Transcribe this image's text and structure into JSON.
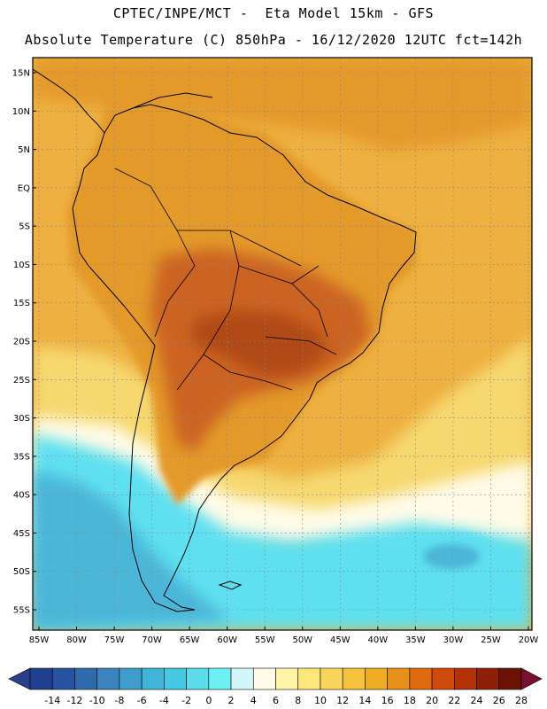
{
  "header": {
    "line1": "CPTEC/INPE/MCT -  Eta Model 15km - GFS",
    "line2": "Absolute Temperature (C) 850hPa - 16/12/2020 12UTC fct=142h"
  },
  "axes": {
    "lat_labels": [
      "15N",
      "10N",
      "5N",
      "EQ",
      "5S",
      "10S",
      "15S",
      "20S",
      "25S",
      "30S",
      "35S",
      "40S",
      "45S",
      "50S",
      "55S"
    ],
    "lat_values": [
      15,
      10,
      5,
      0,
      -5,
      -10,
      -15,
      -20,
      -25,
      -30,
      -35,
      -40,
      -45,
      -50,
      -55
    ],
    "lon_labels": [
      "85W",
      "80W",
      "75W",
      "70W",
      "65W",
      "60W",
      "55W",
      "50W",
      "45W",
      "40W",
      "35W",
      "30W",
      "25W",
      "20W"
    ],
    "lon_values": [
      -85,
      -80,
      -75,
      -70,
      -65,
      -60,
      -55,
      -50,
      -45,
      -40,
      -35,
      -30,
      -25,
      -20
    ]
  },
  "colorbar": {
    "labels": [
      "-14",
      "-12",
      "-10",
      "-8",
      "-6",
      "-4",
      "-2",
      "0",
      "2",
      "4",
      "6",
      "8",
      "10",
      "12",
      "14",
      "16",
      "18",
      "20",
      "22",
      "24",
      "26",
      "28"
    ],
    "colors": [
      "#1f3f8f",
      "#27529f",
      "#2f6aaf",
      "#3a83bf",
      "#3f9dcc",
      "#40b5d8",
      "#45c9e2",
      "#5cdcea",
      "#6cf0f4",
      "#d2f6fa",
      "#fffbe8",
      "#fff4a8",
      "#fde67a",
      "#fad55c",
      "#f5c23e",
      "#eead22",
      "#e8901c",
      "#e06a10",
      "#cf4b0c",
      "#b33208",
      "#8f1f06",
      "#6b1204"
    ],
    "end_left": "#2a3f8a",
    "end_right": "#7a1030"
  },
  "colors": {
    "land_warm": "#e49a2a",
    "land_hot": "#cc6420",
    "land_core": "#b04a18",
    "sea_warm": "#eeb040",
    "sea_mid": "#f6d870",
    "sea_pale": "#fffbe8",
    "cold_cyan": "#5fe0f0",
    "cold_blue": "#4cb6d8",
    "grid": "#888888",
    "coast": "#000000"
  }
}
